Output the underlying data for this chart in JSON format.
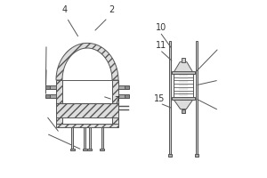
{
  "bg_color": "#ffffff",
  "line_color": "#555555",
  "hatch_color": "#888888",
  "label_color": "#333333",
  "label_fontsize": 7
}
